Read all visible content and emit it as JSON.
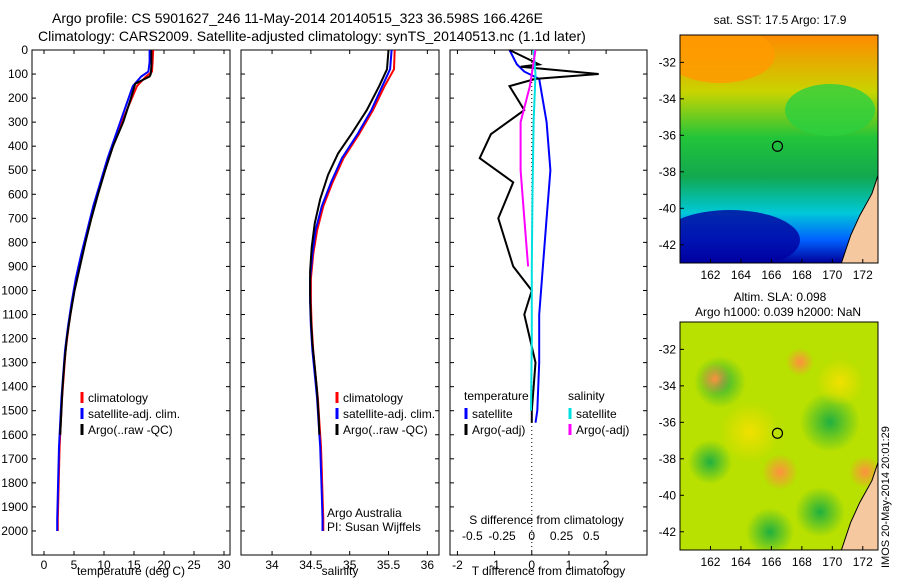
{
  "header": {
    "line1": "Argo profile: CS 5901627_246 11-May-2014 20140515_323 36.598S 166.426E",
    "line2": "Climatology: CARS2009. Satellite-adjusted climatology: synTS_20140513.nc (1.1d later)"
  },
  "side_stamp": "IMOS 20-May-2014 20:01:29",
  "colors": {
    "climatology": "#ff0000",
    "satellite": "#0000ff",
    "argo": "#000000",
    "sat_salinity": "#00e0e0",
    "argo_salinity": "#ff00ff"
  },
  "chart_data": [
    {
      "type": "line",
      "id": "temperature",
      "xlabel": "temperature (deg C)",
      "ylabel": "",
      "xlim": [
        -2,
        31
      ],
      "ylim": [
        2100,
        0
      ],
      "xticks": [
        0,
        5,
        10,
        15,
        20,
        25,
        30
      ],
      "yticks": [
        0,
        100,
        200,
        300,
        400,
        500,
        600,
        700,
        800,
        900,
        1000,
        1100,
        1200,
        1300,
        1400,
        1500,
        1600,
        1700,
        1800,
        1900,
        2000
      ],
      "legend": [
        "climatology",
        "satellite-adj. clim.",
        "Argo(..raw -QC)"
      ],
      "series": [
        {
          "name": "climatology",
          "color": "#ff0000",
          "points": [
            [
              18.2,
              0
            ],
            [
              18.1,
              50
            ],
            [
              18.0,
              90
            ],
            [
              17.0,
              110
            ],
            [
              15.5,
              150
            ],
            [
              13.8,
              250
            ],
            [
              12.2,
              350
            ],
            [
              10.8,
              450
            ],
            [
              9.5,
              550
            ],
            [
              8.3,
              650
            ],
            [
              7.3,
              750
            ],
            [
              6.3,
              850
            ],
            [
              5.4,
              950
            ],
            [
              4.7,
              1050
            ],
            [
              4.1,
              1150
            ],
            [
              3.6,
              1250
            ],
            [
              3.3,
              1350
            ],
            [
              3.0,
              1450
            ],
            [
              2.8,
              1550
            ],
            [
              2.6,
              1650
            ],
            [
              2.5,
              1750
            ],
            [
              2.4,
              1850
            ],
            [
              2.3,
              1950
            ],
            [
              2.3,
              2000
            ]
          ]
        },
        {
          "name": "satellite-adj. clim.",
          "color": "#0000ff",
          "points": [
            [
              17.6,
              0
            ],
            [
              17.6,
              50
            ],
            [
              17.4,
              90
            ],
            [
              16.2,
              110
            ],
            [
              14.8,
              150
            ],
            [
              13.4,
              250
            ],
            [
              12.0,
              350
            ],
            [
              10.6,
              450
            ],
            [
              9.4,
              550
            ],
            [
              8.2,
              650
            ],
            [
              7.2,
              750
            ],
            [
              6.2,
              850
            ],
            [
              5.3,
              950
            ],
            [
              4.6,
              1050
            ],
            [
              4.0,
              1150
            ],
            [
              3.5,
              1250
            ],
            [
              3.2,
              1350
            ],
            [
              2.9,
              1450
            ],
            [
              2.7,
              1550
            ],
            [
              2.5,
              1650
            ],
            [
              2.4,
              1750
            ],
            [
              2.3,
              1850
            ],
            [
              2.2,
              1950
            ],
            [
              2.2,
              2000
            ]
          ]
        },
        {
          "name": "Argo(..raw -QC)",
          "color": "#000000",
          "points": [
            [
              17.9,
              0
            ],
            [
              17.9,
              60
            ],
            [
              17.8,
              100
            ],
            [
              17.6,
              110
            ],
            [
              15.2,
              140
            ],
            [
              14.5,
              200
            ],
            [
              13.2,
              300
            ],
            [
              11.5,
              400
            ],
            [
              10.2,
              500
            ],
            [
              9.0,
              600
            ],
            [
              7.9,
              700
            ],
            [
              6.9,
              800
            ],
            [
              6.0,
              900
            ],
            [
              5.1,
              1000
            ],
            [
              4.4,
              1100
            ],
            [
              3.8,
              1200
            ],
            [
              3.4,
              1300
            ],
            [
              3.1,
              1400
            ],
            [
              2.9,
              1500
            ],
            [
              2.7,
              1600
            ]
          ]
        }
      ]
    },
    {
      "type": "line",
      "id": "salinity",
      "xlabel": "salinity",
      "ylabel": "",
      "xlim": [
        33.6,
        36.15
      ],
      "ylim": [
        2100,
        0
      ],
      "xticks": [
        34,
        34.5,
        35,
        35.5,
        36
      ],
      "legend": [
        "climatology",
        "satellite-adj. clim.",
        "Argo(..raw -QC)"
      ],
      "annotations": [
        "Argo Australia",
        "PI: Susan Wijffels"
      ],
      "series": [
        {
          "name": "climatology",
          "color": "#ff0000",
          "points": [
            [
              35.58,
              0
            ],
            [
              35.57,
              80
            ],
            [
              35.45,
              150
            ],
            [
              35.3,
              250
            ],
            [
              35.12,
              350
            ],
            [
              34.92,
              450
            ],
            [
              34.78,
              550
            ],
            [
              34.66,
              650
            ],
            [
              34.58,
              750
            ],
            [
              34.53,
              850
            ],
            [
              34.5,
              950
            ],
            [
              34.5,
              1050
            ],
            [
              34.51,
              1150
            ],
            [
              34.53,
              1250
            ],
            [
              34.56,
              1350
            ],
            [
              34.59,
              1450
            ],
            [
              34.61,
              1550
            ],
            [
              34.63,
              1650
            ],
            [
              34.64,
              1750
            ],
            [
              34.65,
              1850
            ],
            [
              34.66,
              1950
            ],
            [
              34.66,
              2000
            ]
          ]
        },
        {
          "name": "satellite-adj. clim.",
          "color": "#0000ff",
          "points": [
            [
              35.54,
              0
            ],
            [
              35.52,
              80
            ],
            [
              35.42,
              150
            ],
            [
              35.28,
              250
            ],
            [
              35.1,
              350
            ],
            [
              34.9,
              450
            ],
            [
              34.76,
              550
            ],
            [
              34.64,
              650
            ],
            [
              34.56,
              750
            ],
            [
              34.52,
              850
            ],
            [
              34.49,
              950
            ],
            [
              34.49,
              1050
            ],
            [
              34.5,
              1150
            ],
            [
              34.52,
              1250
            ],
            [
              34.55,
              1350
            ],
            [
              34.58,
              1450
            ],
            [
              34.6,
              1550
            ],
            [
              34.62,
              1650
            ],
            [
              34.63,
              1750
            ],
            [
              34.64,
              1850
            ],
            [
              34.65,
              1950
            ],
            [
              34.65,
              2000
            ]
          ]
        },
        {
          "name": "Argo(..raw -QC)",
          "color": "#000000",
          "points": [
            [
              35.5,
              0
            ],
            [
              35.48,
              80
            ],
            [
              35.38,
              150
            ],
            [
              35.22,
              250
            ],
            [
              35.02,
              350
            ],
            [
              34.85,
              430
            ],
            [
              34.72,
              520
            ],
            [
              34.62,
              620
            ],
            [
              34.55,
              720
            ],
            [
              34.51,
              820
            ],
            [
              34.49,
              920
            ],
            [
              34.49,
              1020
            ],
            [
              34.5,
              1120
            ],
            [
              34.52,
              1220
            ],
            [
              34.55,
              1320
            ],
            [
              34.58,
              1420
            ],
            [
              34.6,
              1520
            ],
            [
              34.61,
              1600
            ]
          ]
        }
      ]
    },
    {
      "type": "line",
      "id": "difference",
      "xlabel": "T difference from climatology",
      "ylabel": "",
      "xlim": [
        -2.2,
        3.1
      ],
      "ylim": [
        2100,
        0
      ],
      "xticks": [
        -2,
        -1,
        0,
        1,
        2
      ],
      "top_label": "S difference from climatology",
      "top_ticks": [
        "-0.5",
        "-0.25",
        "0",
        "0.25",
        "0.5"
      ],
      "legend_groups": [
        {
          "title": "temperature",
          "items": [
            "satellite",
            "Argo(-adj)"
          ]
        },
        {
          "title": "salinity",
          "items": [
            "satellite",
            "Argo(-adj)"
          ]
        }
      ],
      "series": [
        {
          "name": "temperature satellite",
          "color": "#0000ff",
          "points": [
            [
              -0.6,
              0
            ],
            [
              -0.4,
              60
            ],
            [
              -0.2,
              90
            ],
            [
              0.2,
              120
            ],
            [
              0.4,
              300
            ],
            [
              0.5,
              500
            ],
            [
              0.4,
              700
            ],
            [
              0.3,
              900
            ],
            [
              0.2,
              1100
            ],
            [
              0.2,
              1300
            ],
            [
              0.15,
              1500
            ],
            [
              0.1,
              1550
            ]
          ]
        },
        {
          "name": "temperature Argo(-adj)",
          "color": "#000000",
          "points": [
            [
              -0.6,
              0
            ],
            [
              0.2,
              60
            ],
            [
              -0.3,
              70
            ],
            [
              1.8,
              100
            ],
            [
              0.1,
              120
            ],
            [
              -0.6,
              150
            ],
            [
              -0.2,
              250
            ],
            [
              -1.1,
              350
            ],
            [
              -1.4,
              450
            ],
            [
              -0.5,
              550
            ],
            [
              -0.9,
              700
            ],
            [
              -0.5,
              900
            ],
            [
              0,
              1000
            ],
            [
              -0.2,
              1100
            ],
            [
              0.1,
              1300
            ],
            [
              0,
              1500
            ],
            [
              0,
              1550
            ]
          ]
        },
        {
          "name": "salinity satellite",
          "color": "#00e0e0",
          "points": [
            [
              0.05,
              0
            ],
            [
              0.1,
              100
            ],
            [
              0.05,
              300
            ],
            [
              0.02,
              600
            ],
            [
              0,
              900
            ],
            [
              0,
              1200
            ],
            [
              -0.02,
              1500
            ]
          ]
        },
        {
          "name": "salinity Argo(-adj)",
          "color": "#ff00ff",
          "points": [
            [
              0.1,
              0
            ],
            [
              -0.05,
              150
            ],
            [
              -0.3,
              300
            ],
            [
              -0.3,
              500
            ],
            [
              -0.2,
              700
            ],
            [
              -0.1,
              900
            ]
          ]
        }
      ]
    },
    {
      "type": "heatmap",
      "id": "sst_map",
      "title": "sat. SST: 17.5 Argo: 17.9",
      "xlim": [
        160,
        173
      ],
      "ylim": [
        -43,
        -30.5
      ],
      "xticks": [
        162,
        164,
        166,
        168,
        170,
        172
      ],
      "yticks": [
        -32,
        -34,
        -36,
        -38,
        -40,
        -42
      ],
      "marker": [
        166.4,
        -36.6
      ]
    },
    {
      "type": "heatmap",
      "id": "sla_map",
      "title": "Altim. SLA: 0.098",
      "subtitle": "Argo h1000: 0.039 h2000: NaN",
      "xlim": [
        160,
        173
      ],
      "ylim": [
        -43,
        -30.5
      ],
      "xticks": [
        162,
        164,
        166,
        168,
        170,
        172
      ],
      "yticks": [
        -32,
        -34,
        -36,
        -38,
        -40,
        -42
      ],
      "marker": [
        166.4,
        -36.6
      ]
    }
  ]
}
